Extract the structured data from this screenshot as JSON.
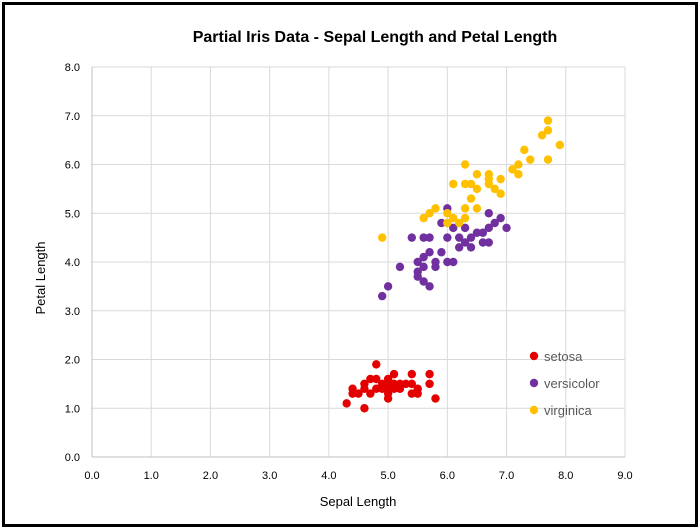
{
  "chart_data": {
    "type": "scatter",
    "title": "Partial Iris Data - Sepal Length and Petal Length",
    "xlabel": "Sepal Length",
    "ylabel": "Petal  Length",
    "xlim": [
      0,
      9
    ],
    "ylim": [
      0,
      8
    ],
    "x_ticks": [
      "0.0",
      "1.0",
      "2.0",
      "3.0",
      "4.0",
      "5.0",
      "6.0",
      "7.0",
      "8.0",
      "9.0"
    ],
    "y_ticks": [
      "0.0",
      "1.0",
      "2.0",
      "3.0",
      "4.0",
      "5.0",
      "6.0",
      "7.0",
      "8.0"
    ],
    "grid": true,
    "legend_position": "right-inside-bottom",
    "series": [
      {
        "name": "setosa",
        "color": "#e50000",
        "points": [
          [
            4.3,
            1.1
          ],
          [
            4.4,
            1.3
          ],
          [
            4.4,
            1.4
          ],
          [
            4.5,
            1.3
          ],
          [
            4.6,
            1.0
          ],
          [
            4.6,
            1.4
          ],
          [
            4.6,
            1.5
          ],
          [
            4.7,
            1.3
          ],
          [
            4.7,
            1.6
          ],
          [
            4.8,
            1.4
          ],
          [
            4.8,
            1.6
          ],
          [
            4.8,
            1.9
          ],
          [
            4.9,
            1.4
          ],
          [
            4.9,
            1.5
          ],
          [
            5.0,
            1.2
          ],
          [
            5.0,
            1.3
          ],
          [
            5.0,
            1.4
          ],
          [
            5.0,
            1.5
          ],
          [
            5.0,
            1.6
          ],
          [
            5.1,
            1.4
          ],
          [
            5.1,
            1.5
          ],
          [
            5.1,
            1.7
          ],
          [
            5.2,
            1.4
          ],
          [
            5.2,
            1.5
          ],
          [
            5.3,
            1.5
          ],
          [
            5.4,
            1.3
          ],
          [
            5.4,
            1.5
          ],
          [
            5.4,
            1.7
          ],
          [
            5.5,
            1.3
          ],
          [
            5.5,
            1.4
          ],
          [
            5.7,
            1.5
          ],
          [
            5.7,
            1.7
          ],
          [
            5.8,
            1.2
          ]
        ]
      },
      {
        "name": "versicolor",
        "color": "#7030a0",
        "points": [
          [
            4.9,
            3.3
          ],
          [
            5.0,
            3.5
          ],
          [
            5.2,
            3.9
          ],
          [
            5.4,
            4.5
          ],
          [
            5.5,
            3.8
          ],
          [
            5.5,
            4.0
          ],
          [
            5.5,
            3.7
          ],
          [
            5.6,
            3.6
          ],
          [
            5.6,
            3.9
          ],
          [
            5.6,
            4.1
          ],
          [
            5.6,
            4.5
          ],
          [
            5.7,
            3.5
          ],
          [
            5.7,
            4.2
          ],
          [
            5.7,
            4.5
          ],
          [
            5.8,
            3.9
          ],
          [
            5.8,
            4.0
          ],
          [
            5.9,
            4.2
          ],
          [
            5.9,
            4.8
          ],
          [
            6.0,
            4.0
          ],
          [
            6.0,
            4.5
          ],
          [
            6.0,
            5.1
          ],
          [
            6.1,
            4.0
          ],
          [
            6.1,
            4.7
          ],
          [
            6.2,
            4.3
          ],
          [
            6.2,
            4.5
          ],
          [
            6.3,
            4.4
          ],
          [
            6.3,
            4.7
          ],
          [
            6.4,
            4.3
          ],
          [
            6.4,
            4.5
          ],
          [
            6.5,
            4.6
          ],
          [
            6.6,
            4.4
          ],
          [
            6.6,
            4.6
          ],
          [
            6.7,
            4.4
          ],
          [
            6.7,
            4.7
          ],
          [
            6.7,
            5.0
          ],
          [
            6.8,
            4.8
          ],
          [
            6.9,
            4.9
          ],
          [
            7.0,
            4.7
          ]
        ]
      },
      {
        "name": "virginica",
        "color": "#ffc000",
        "points": [
          [
            4.9,
            4.5
          ],
          [
            5.6,
            4.9
          ],
          [
            5.7,
            5.0
          ],
          [
            5.8,
            5.1
          ],
          [
            6.0,
            4.8
          ],
          [
            6.0,
            5.0
          ],
          [
            6.1,
            4.9
          ],
          [
            6.1,
            5.6
          ],
          [
            6.2,
            4.8
          ],
          [
            6.3,
            4.9
          ],
          [
            6.3,
            5.1
          ],
          [
            6.3,
            5.6
          ],
          [
            6.3,
            6.0
          ],
          [
            6.4,
            5.3
          ],
          [
            6.4,
            5.6
          ],
          [
            6.5,
            5.1
          ],
          [
            6.5,
            5.5
          ],
          [
            6.5,
            5.8
          ],
          [
            6.7,
            5.6
          ],
          [
            6.7,
            5.7
          ],
          [
            6.7,
            5.8
          ],
          [
            6.8,
            5.5
          ],
          [
            6.9,
            5.4
          ],
          [
            6.9,
            5.7
          ],
          [
            7.1,
            5.9
          ],
          [
            7.2,
            5.8
          ],
          [
            7.2,
            6.0
          ],
          [
            7.4,
            6.1
          ],
          [
            7.3,
            6.3
          ],
          [
            7.6,
            6.6
          ],
          [
            7.7,
            6.1
          ],
          [
            7.7,
            6.7
          ],
          [
            7.7,
            6.9
          ],
          [
            7.9,
            6.4
          ]
        ]
      }
    ]
  }
}
